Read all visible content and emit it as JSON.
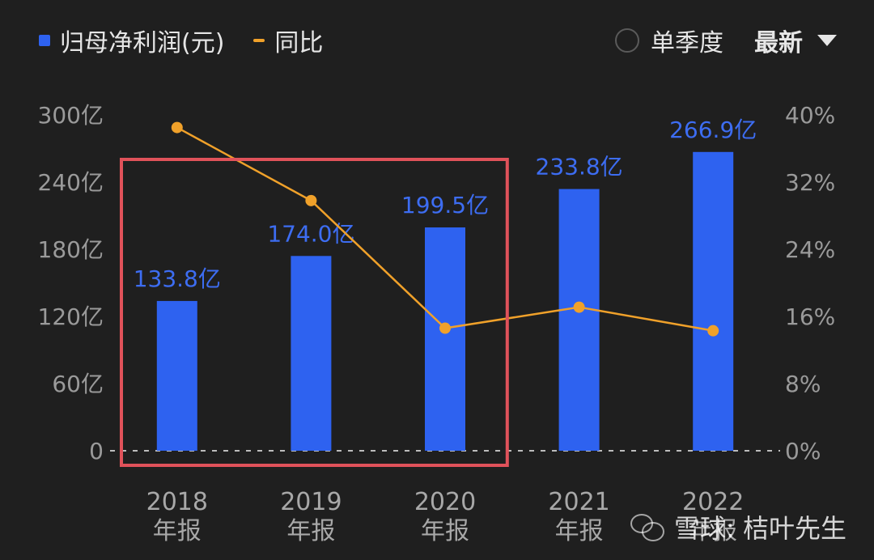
{
  "legend": {
    "bar_label": "归母净利润(元)",
    "line_label": "同比"
  },
  "controls": {
    "radio_label": "单季度",
    "select_label": "最新"
  },
  "watermark": {
    "text": "雪球: 桔叶先生"
  },
  "colors": {
    "bar": "#2e62f0",
    "line": "#f0a12a",
    "highlight_box": "#e0525a",
    "bar_label": "#3d6df2"
  },
  "chart_data": {
    "type": "bar",
    "categories": [
      "2018\n年报",
      "2019\n年报",
      "2020\n年报",
      "2021\n年报",
      "2022\n年报"
    ],
    "series": [
      {
        "type": "bar",
        "axis": "left",
        "values": [
          133.8,
          174.0,
          199.5,
          233.8,
          266.9
        ],
        "data_labels": [
          "133.8亿",
          "174.0亿",
          "199.5亿",
          "233.8亿",
          "266.9亿"
        ]
      },
      {
        "type": "line",
        "axis": "right",
        "values": [
          38.5,
          29.8,
          14.6,
          17.1,
          14.3
        ]
      }
    ],
    "y_left": {
      "ylim": [
        0,
        300
      ],
      "ticks": [
        "0",
        "60亿",
        "120亿",
        "180亿",
        "240亿",
        "300亿"
      ]
    },
    "y_right": {
      "ylim": [
        0,
        40
      ],
      "ticks": [
        "0%",
        "8%",
        "16%",
        "24%",
        "32%",
        "40%"
      ]
    },
    "highlight": {
      "from_category": 0,
      "to_category": 2
    },
    "grid": false,
    "legend_position": "top-left"
  }
}
